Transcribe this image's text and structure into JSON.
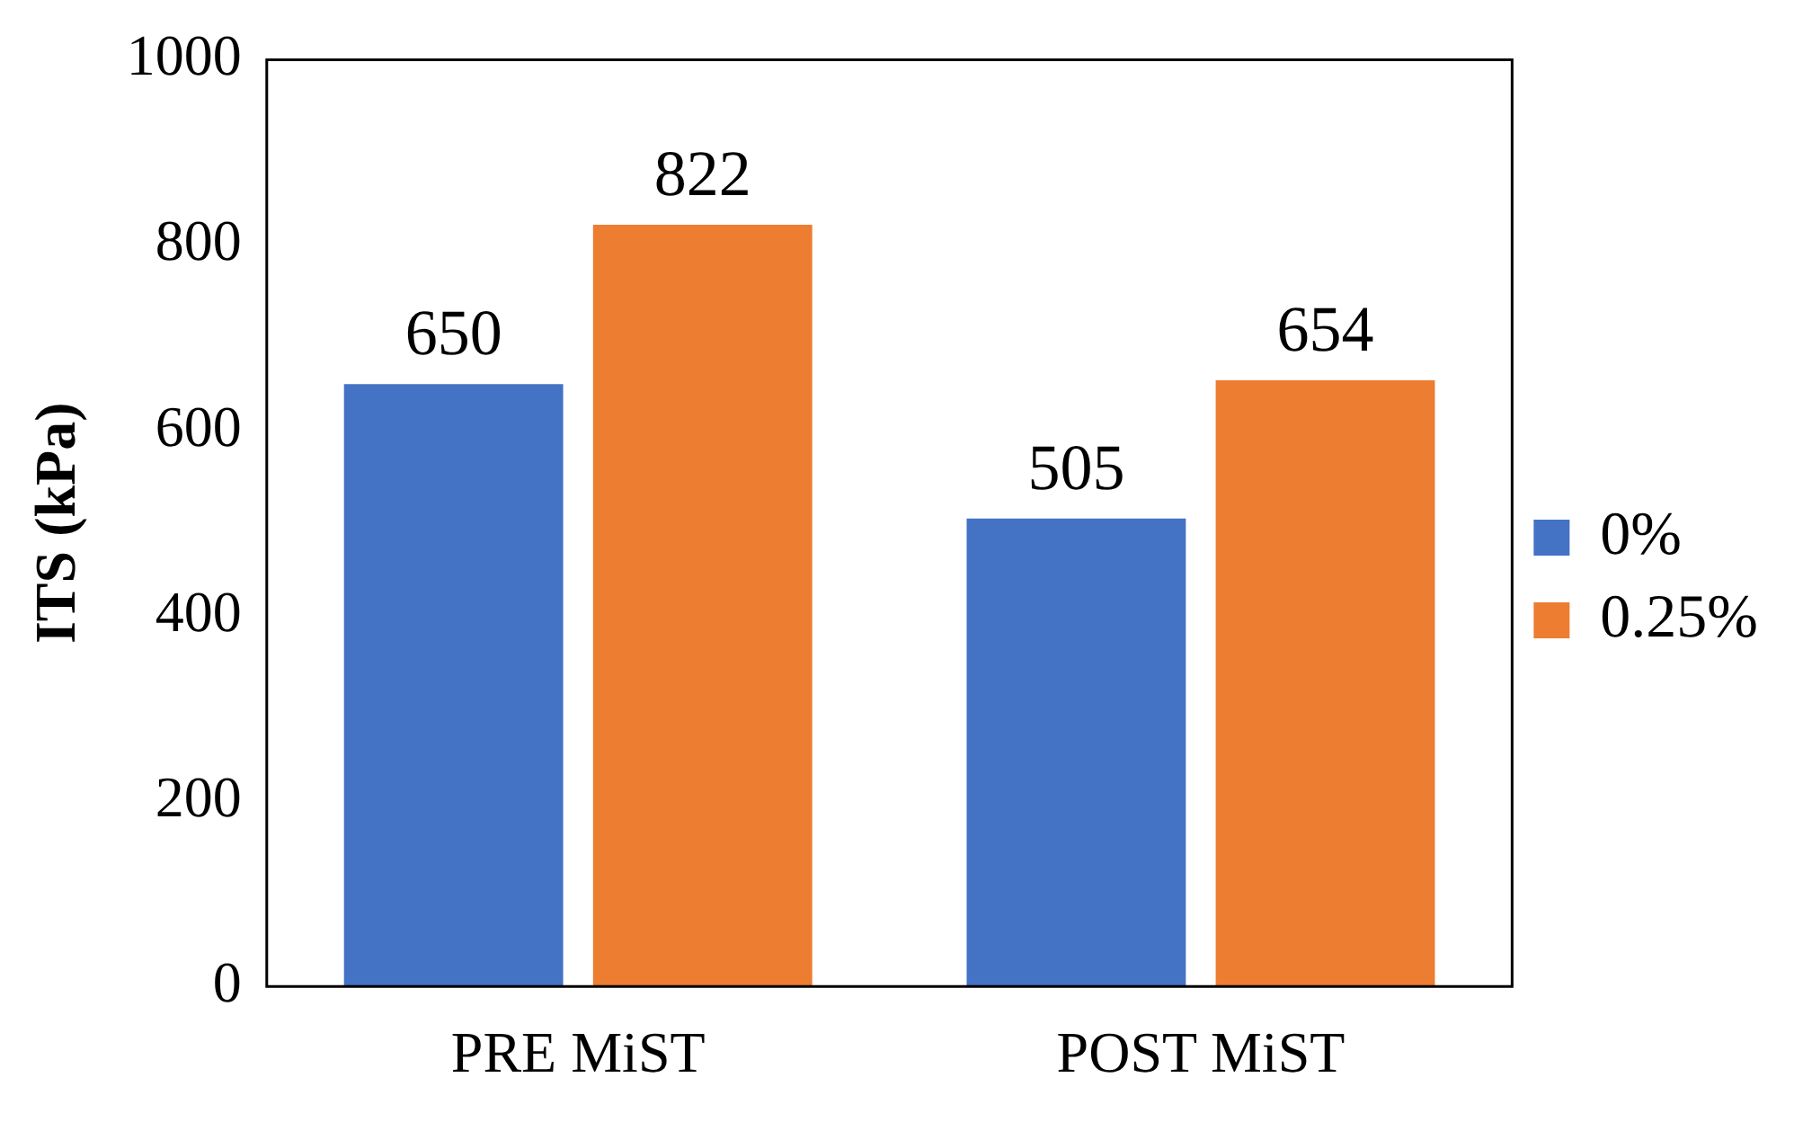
{
  "chart_data": {
    "type": "bar",
    "ylabel": "ITS (kPa)",
    "categories": [
      "PRE MiST",
      "POST MiST"
    ],
    "series": [
      {
        "name": "0%",
        "color": "#4472c4",
        "values": [
          650,
          505
        ]
      },
      {
        "name": "0.25%",
        "color": "#ed7d31",
        "values": [
          822,
          654
        ]
      }
    ],
    "ylim": [
      0,
      1000
    ],
    "yticks": [
      0,
      200,
      400,
      600,
      800,
      1000
    ],
    "grid": false,
    "legend": "right",
    "data_labels": true
  }
}
